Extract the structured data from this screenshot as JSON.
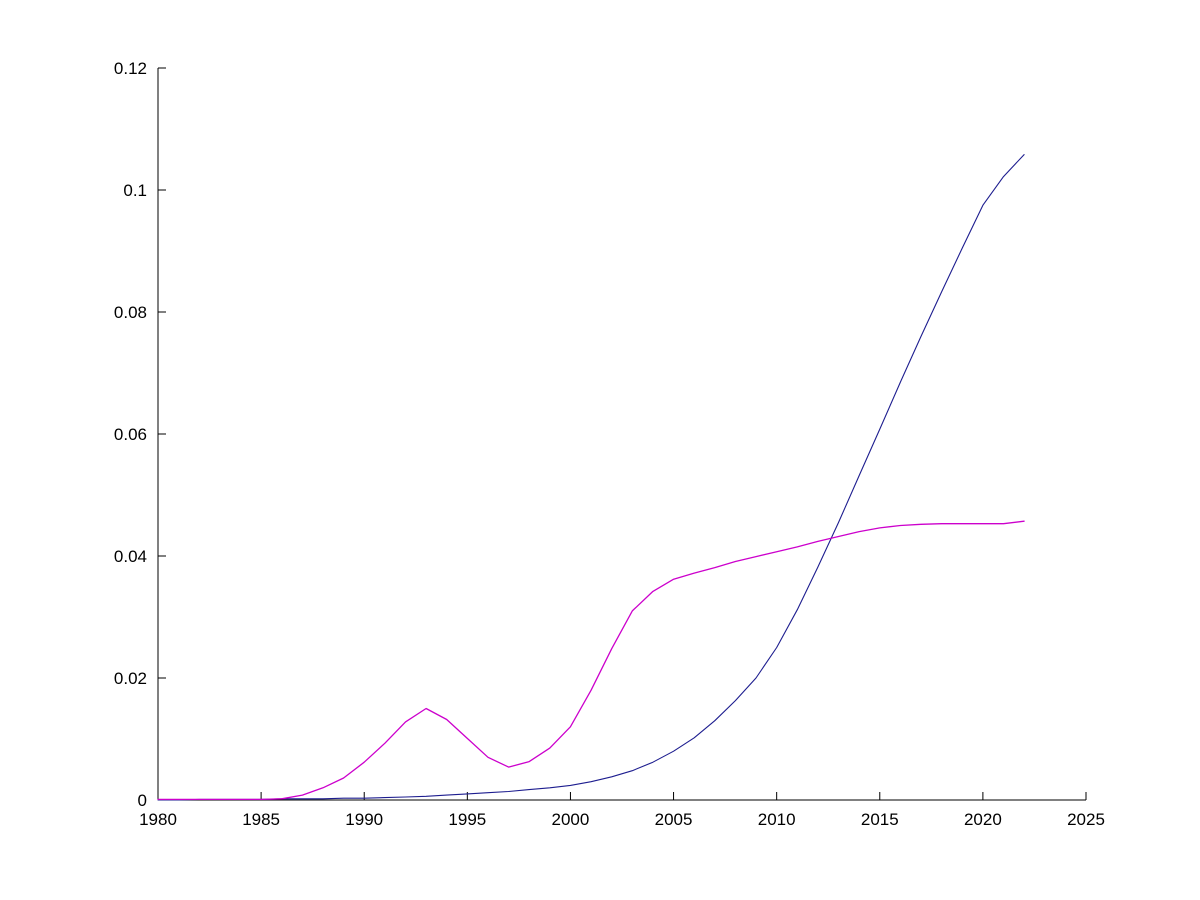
{
  "figure": {
    "background_color": "#ffffff",
    "axis_color": "#000000"
  },
  "chart_data": {
    "type": "line",
    "title": "",
    "xlabel": "",
    "ylabel": "",
    "grid": false,
    "legend": "none",
    "xlim": [
      1980,
      2025
    ],
    "ylim": [
      0,
      0.12
    ],
    "x_ticks": [
      {
        "value": 1980,
        "label": "1980"
      },
      {
        "value": 1985,
        "label": "1985"
      },
      {
        "value": 1990,
        "label": "1990"
      },
      {
        "value": 1995,
        "label": "1995"
      },
      {
        "value": 2000,
        "label": "2000"
      },
      {
        "value": 2005,
        "label": "2005"
      },
      {
        "value": 2010,
        "label": "2010"
      },
      {
        "value": 2015,
        "label": "2015"
      },
      {
        "value": 2020,
        "label": "2020"
      },
      {
        "value": 2025,
        "label": "2025"
      }
    ],
    "y_ticks": [
      {
        "value": 0,
        "label": "0"
      },
      {
        "value": 0.02,
        "label": "0.02"
      },
      {
        "value": 0.04,
        "label": "0.04"
      },
      {
        "value": 0.06,
        "label": "0.06"
      },
      {
        "value": 0.08,
        "label": "0.08"
      },
      {
        "value": 0.1,
        "label": "0.1"
      },
      {
        "value": 0.12,
        "label": "0.12"
      }
    ],
    "x": [
      1980,
      1981,
      1982,
      1983,
      1984,
      1985,
      1986,
      1987,
      1988,
      1989,
      1990,
      1991,
      1992,
      1993,
      1994,
      1995,
      1996,
      1997,
      1998,
      1999,
      2000,
      2001,
      2002,
      2003,
      2004,
      2005,
      2006,
      2007,
      2008,
      2009,
      2010,
      2011,
      2012,
      2013,
      2014,
      2015,
      2016,
      2017,
      2018,
      2019,
      2020,
      2021,
      2022
    ],
    "series": [
      {
        "name": "dark-blue-s-curve",
        "color": "#1d1d8f",
        "width": 1.1,
        "values": [
          0.0,
          0.0,
          0.0001,
          0.0001,
          0.0001,
          0.0001,
          0.0002,
          0.0002,
          0.0002,
          0.0003,
          0.0003,
          0.0004,
          0.0005,
          0.0006,
          0.0008,
          0.001,
          0.0012,
          0.0014,
          0.0017,
          0.002,
          0.0024,
          0.003,
          0.0038,
          0.0048,
          0.0062,
          0.008,
          0.0102,
          0.013,
          0.0163,
          0.02,
          0.025,
          0.0312,
          0.0382,
          0.0455,
          0.0532,
          0.0608,
          0.0685,
          0.076,
          0.0833,
          0.0905,
          0.0975,
          0.1022,
          0.1058
        ]
      },
      {
        "name": "magenta-bump-plateau",
        "color": "#cc00cc",
        "width": 1.3,
        "values": [
          0.0001,
          0.0001,
          0.0001,
          0.0001,
          0.0001,
          0.0001,
          0.0002,
          0.0008,
          0.002,
          0.0036,
          0.0062,
          0.0093,
          0.0128,
          0.015,
          0.0132,
          0.0101,
          0.007,
          0.0054,
          0.0063,
          0.0085,
          0.012,
          0.018,
          0.0248,
          0.031,
          0.0342,
          0.0362,
          0.0372,
          0.0381,
          0.0391,
          0.0399,
          0.0407,
          0.0415,
          0.0424,
          0.0432,
          0.044,
          0.0446,
          0.045,
          0.0452,
          0.0453,
          0.0453,
          0.0453,
          0.0453,
          0.0457
        ]
      }
    ]
  }
}
